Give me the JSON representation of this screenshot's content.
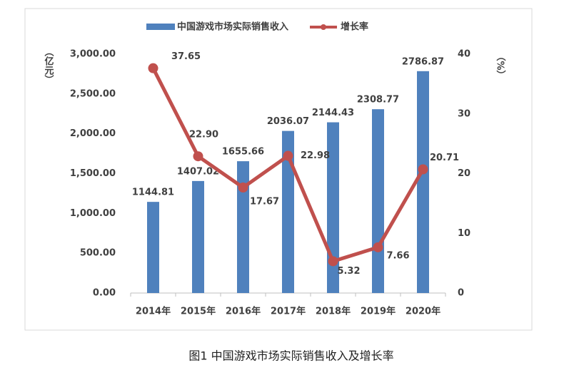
{
  "chart_data": {
    "type": "bar-line",
    "caption": "图1  中国游戏市场实际销售收入及增长率",
    "y_label": "（亿元）",
    "y2_label": "（%）",
    "categories": [
      "2014年",
      "2015年",
      "2016年",
      "2017年",
      "2018年",
      "2019年",
      "2020年"
    ],
    "series": [
      {
        "name": "中国游戏市场实际销售收入",
        "type": "bar",
        "color": "#4f81bd",
        "values": [
          1144.81,
          1407.02,
          1655.66,
          2036.07,
          2144.43,
          2308.77,
          2786.87
        ]
      },
      {
        "name": "增长率",
        "type": "line",
        "axis": "y2",
        "color": "#c0504d",
        "values": [
          37.65,
          22.9,
          17.67,
          22.98,
          5.32,
          7.66,
          20.71
        ],
        "value_labels": [
          "37.65",
          "22.90",
          "17.67",
          "22.98",
          "5.32",
          "7.66",
          "20.71"
        ]
      }
    ],
    "ylim": [
      0,
      3000
    ],
    "yticks": [
      {
        "value": 0,
        "label": "0.00"
      },
      {
        "value": 500,
        "label": "500.00"
      },
      {
        "value": 1000,
        "label": "1,000.00"
      },
      {
        "value": 1500,
        "label": "1,500.00"
      },
      {
        "value": 2000,
        "label": "2,000.00"
      },
      {
        "value": 2500,
        "label": "2,500.00"
      },
      {
        "value": 3000,
        "label": "3,000.00"
      }
    ],
    "y2lim": [
      0,
      40
    ],
    "y2ticks": [
      0,
      10,
      20,
      30,
      40
    ],
    "grid": false,
    "legend": "top"
  }
}
